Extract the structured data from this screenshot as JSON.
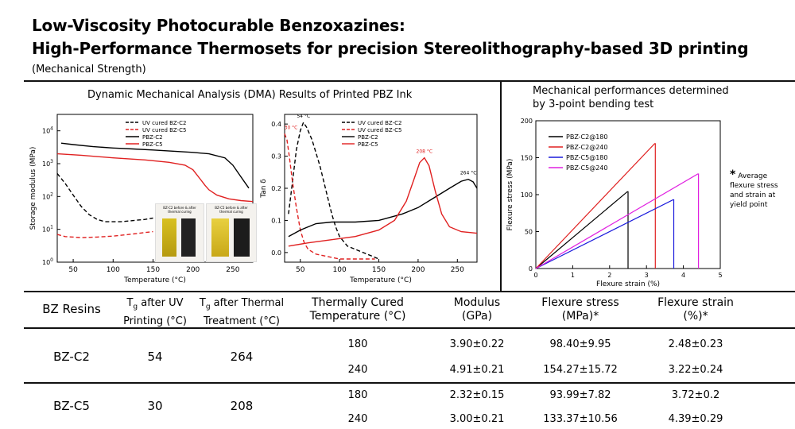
{
  "title": {
    "line1": "Low-Viscosity Photocurable Benzoxazines:",
    "line2": "High-Performance Thermosets for precision Stereolithography-based 3D printing",
    "subtitle": "(Mechanical Strength)"
  },
  "dma_section_title": "Dynamic Mechanical Analysis (DMA) Results of Printed PBZ Ink",
  "bending_section_title_line1": "Mechanical performances determined",
  "bending_section_title_line2": "by 3-point bending test",
  "note": {
    "star": "*",
    "text": "Average flexure stress and strain at yield point"
  },
  "inset": {
    "left_caption": "BZ-C2 before & after thermal curing",
    "right_caption": "BZ-C5 before & after thermal curing"
  },
  "chart_data": [
    {
      "type": "line",
      "xlabel": "Temperature (°C)",
      "ylabel": "Storage modulus (MPa)",
      "xlim": [
        30,
        275
      ],
      "ylim_log10": [
        0,
        4.5
      ],
      "yscale": "log",
      "xticks": [
        50,
        100,
        150,
        200,
        250
      ],
      "yticks": [
        "10^0",
        "10^1",
        "10^2",
        "10^3",
        "10^4"
      ],
      "legend": "top-center",
      "series": [
        {
          "name": "UV cured BZ-C2",
          "style": "dashed",
          "color": "#000000",
          "x": [
            30,
            40,
            50,
            60,
            70,
            80,
            90,
            100,
            110,
            120,
            130,
            140,
            150
          ],
          "y": [
            500,
            250,
            110,
            50,
            28,
            20,
            17,
            17,
            17,
            18,
            19,
            20,
            22
          ]
        },
        {
          "name": "UV cured BZ-C5",
          "style": "dashed",
          "color": "#e02020",
          "x": [
            30,
            40,
            60,
            80,
            100,
            120,
            140,
            150
          ],
          "y": [
            7,
            6,
            5.6,
            5.8,
            6.2,
            7,
            8,
            8.5
          ]
        },
        {
          "name": "PBZ-C2",
          "style": "solid",
          "color": "#000000",
          "x": [
            35,
            50,
            75,
            100,
            125,
            150,
            175,
            200,
            220,
            240,
            250,
            260,
            270
          ],
          "y": [
            4200,
            3800,
            3300,
            3000,
            2800,
            2600,
            2400,
            2200,
            2000,
            1500,
            900,
            400,
            180
          ]
        },
        {
          "name": "PBZ-C5",
          "style": "solid",
          "color": "#e02020",
          "x": [
            30,
            60,
            100,
            140,
            170,
            190,
            200,
            210,
            215,
            220,
            230,
            245,
            260,
            275
          ],
          "y": [
            2000,
            1800,
            1500,
            1300,
            1100,
            900,
            650,
            320,
            220,
            160,
            110,
            85,
            75,
            70
          ]
        }
      ]
    },
    {
      "type": "line",
      "xlabel": "Temperature (°C)",
      "ylabel": "Tan δ",
      "xlim": [
        30,
        275
      ],
      "ylim": [
        -0.03,
        0.43
      ],
      "xticks": [
        50,
        100,
        150,
        200,
        250
      ],
      "yticks": [
        0.0,
        0.1,
        0.2,
        0.3,
        0.4
      ],
      "legend": "top-right",
      "annotations": [
        "54 °C",
        "30 °C",
        "208 °C",
        "264 °C"
      ],
      "series": [
        {
          "name": "UV cured BZ-C2",
          "style": "dashed",
          "color": "#000000",
          "x": [
            35,
            40,
            45,
            50,
            54,
            58,
            65,
            70,
            75,
            80,
            85,
            90,
            95,
            100,
            110,
            120,
            130,
            140,
            150
          ],
          "y": [
            0.12,
            0.22,
            0.32,
            0.38,
            0.405,
            0.39,
            0.35,
            0.31,
            0.27,
            0.22,
            0.17,
            0.12,
            0.08,
            0.05,
            0.02,
            0.01,
            0.0,
            -0.01,
            -0.02
          ]
        },
        {
          "name": "UV cured BZ-C5",
          "style": "dashed",
          "color": "#e02020",
          "x": [
            30,
            33,
            36,
            40,
            45,
            50,
            55,
            60,
            70,
            80,
            100,
            120,
            145
          ],
          "y": [
            0.37,
            0.35,
            0.3,
            0.22,
            0.14,
            0.07,
            0.03,
            0.01,
            -0.005,
            -0.01,
            -0.02,
            -0.02,
            -0.02
          ]
        },
        {
          "name": "PBZ-C2",
          "style": "solid",
          "color": "#000000",
          "x": [
            35,
            50,
            70,
            90,
            120,
            150,
            180,
            200,
            220,
            240,
            255,
            264,
            270,
            275
          ],
          "y": [
            0.05,
            0.07,
            0.09,
            0.095,
            0.095,
            0.1,
            0.12,
            0.14,
            0.17,
            0.2,
            0.222,
            0.228,
            0.22,
            0.2
          ]
        },
        {
          "name": "PBZ-C5",
          "style": "solid",
          "color": "#e02020",
          "x": [
            35,
            60,
            90,
            120,
            150,
            170,
            185,
            195,
            202,
            208,
            214,
            222,
            230,
            240,
            255,
            275
          ],
          "y": [
            0.02,
            0.03,
            0.04,
            0.05,
            0.07,
            0.1,
            0.16,
            0.23,
            0.28,
            0.295,
            0.27,
            0.19,
            0.12,
            0.08,
            0.065,
            0.06
          ]
        }
      ]
    },
    {
      "type": "line",
      "xlabel": "Flexure strain (%)",
      "ylabel": "Flexure stress (MPa)",
      "xlim": [
        0,
        5
      ],
      "ylim": [
        0,
        200
      ],
      "xticks": [
        0,
        1,
        2,
        3,
        4,
        5
      ],
      "yticks": [
        0,
        50,
        100,
        150,
        200
      ],
      "legend": "top-left",
      "series": [
        {
          "name": "PBZ-C2@180",
          "color": "#000000",
          "x": [
            0,
            2.48,
            2.5,
            2.5
          ],
          "y": [
            0,
            104,
            104,
            0
          ]
        },
        {
          "name": "PBZ-C2@240",
          "color": "#e02020",
          "x": [
            0,
            3.22,
            3.24,
            3.24
          ],
          "y": [
            0,
            169,
            169,
            0
          ]
        },
        {
          "name": "PBZ-C5@180",
          "color": "#1a1adc",
          "x": [
            0,
            3.72,
            3.74,
            3.74
          ],
          "y": [
            0,
            93,
            93,
            0
          ]
        },
        {
          "name": "PBZ-C5@240",
          "color": "#e020e0",
          "x": [
            0,
            4.39,
            4.41,
            4.41
          ],
          "y": [
            0,
            128,
            128,
            0
          ]
        }
      ]
    }
  ],
  "table": {
    "headers": [
      {
        "line1": "BZ Resins",
        "line2": ""
      },
      {
        "line1": "T",
        "sub": "g",
        "line1b": " after UV",
        "line2": "Printing (°C)"
      },
      {
        "line1": "T",
        "sub": "g",
        "line1b": " after Thermal",
        "line2": "Treatment (°C)"
      },
      {
        "line1": "Thermally Cured",
        "line2": "Temperature (°C)"
      },
      {
        "line1": "Modulus",
        "line2": "(GPa)"
      },
      {
        "line1": "Flexure stress",
        "line2": "(MPa)*"
      },
      {
        "line1": "Flexure strain",
        "line2": "(%)*"
      }
    ],
    "groups": [
      {
        "resin": "BZ-C2",
        "tg_uv": "54",
        "tg_thermal": "264",
        "rows": [
          {
            "temp": "180",
            "modulus": "3.90±0.22",
            "stress": "98.40±9.95",
            "strain": "2.48±0.23"
          },
          {
            "temp": "240",
            "modulus": "4.91±0.21",
            "stress": "154.27±15.72",
            "strain": "3.22±0.24"
          }
        ]
      },
      {
        "resin": "BZ-C5",
        "tg_uv": "30",
        "tg_thermal": "208",
        "rows": [
          {
            "temp": "180",
            "modulus": "2.32±0.15",
            "stress": "93.99±7.82",
            "strain": "3.72±0.2"
          },
          {
            "temp": "240",
            "modulus": "3.00±0.21",
            "stress": "133.37±10.56",
            "strain": "4.39±0.29"
          }
        ]
      }
    ]
  }
}
